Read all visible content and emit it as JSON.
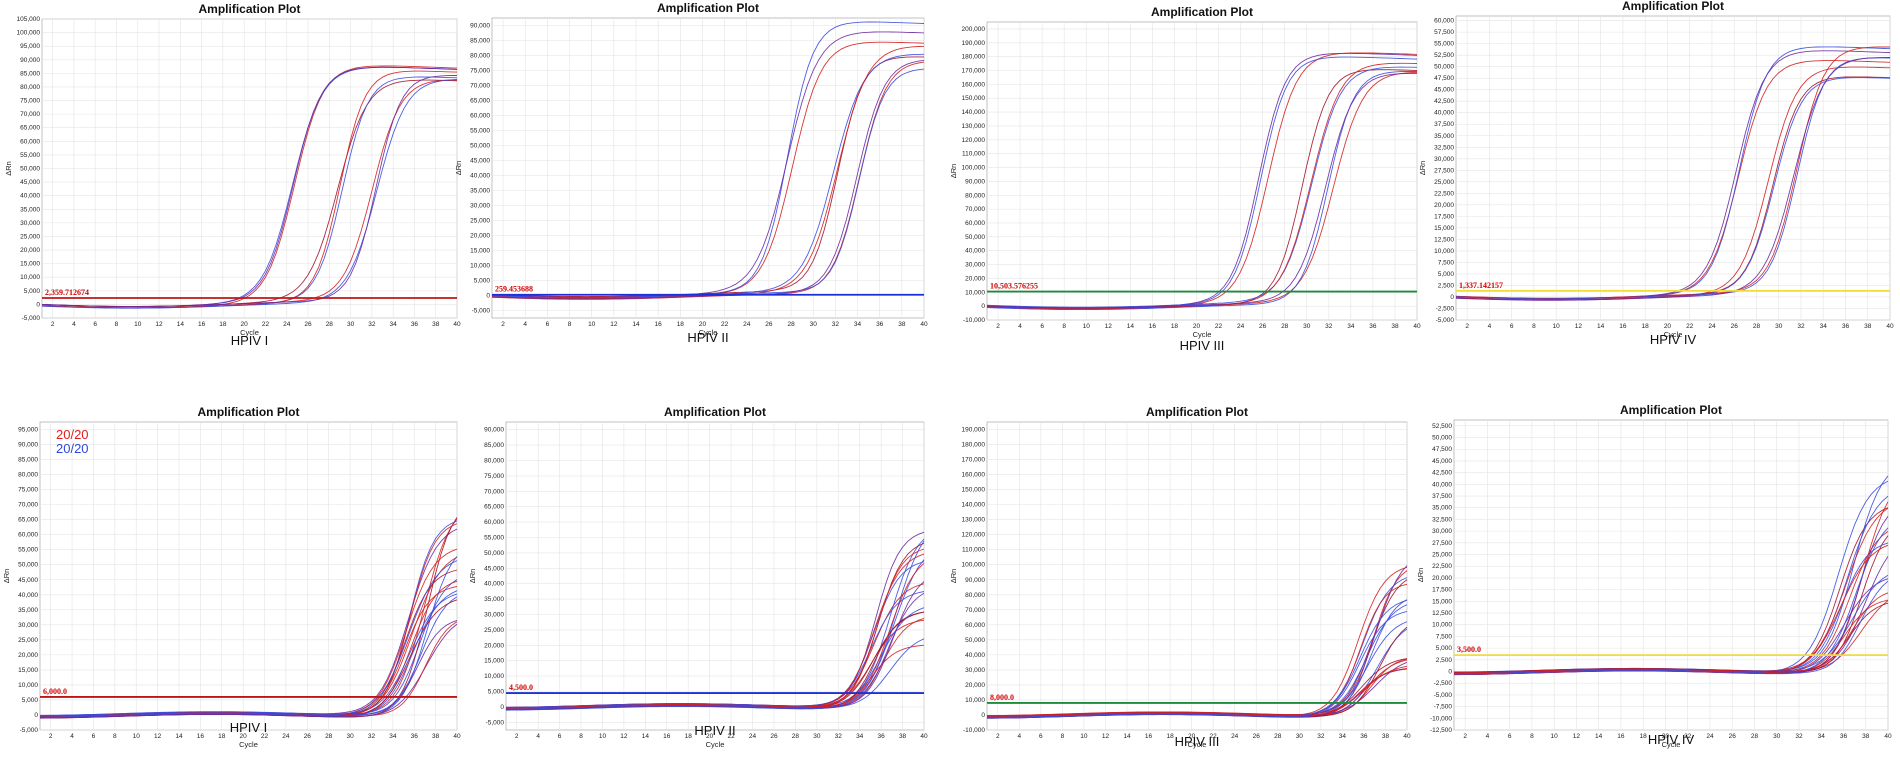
{
  "colors": {
    "red": "#d42020",
    "blue": "#3a4ee0",
    "purple": "#6a2aa0",
    "darkred": "#a4122a",
    "grid": "#e4e4e4",
    "frame": "#9a9a9a",
    "threshold_red": "#c01414",
    "threshold_blue": "#1c30d8",
    "threshold_green": "#1e8a3c",
    "threshold_yellow": "#f2dc38"
  },
  "chart_data": [
    {
      "type": "line",
      "title": "Amplification Plot",
      "caption": "HPIV I",
      "xlabel": "Cycle",
      "ylabel": "ΔRn",
      "xlim": [
        1,
        40
      ],
      "ylim": [
        -5000,
        105000
      ],
      "ystep": 5000,
      "threshold": {
        "value": 2359.71,
        "label": "2,359.712674",
        "color": "#c01414"
      },
      "grid": true,
      "curves": {
        "style": "sigmoid",
        "groups": [
          {
            "ct": 25.0,
            "plateau": 88000,
            "count": 3,
            "spread": 0.5,
            "pspread": 4000
          },
          {
            "ct": 29.0,
            "plateau": 84000,
            "count": 3,
            "spread": 0.6,
            "pspread": 3000
          },
          {
            "ct": 32.0,
            "plateau": 86000,
            "count": 3,
            "spread": 0.5,
            "pspread": 3000
          }
        ]
      }
    },
    {
      "type": "line",
      "title": "Amplification Plot",
      "caption": "HPIV II",
      "xlabel": "Cycle",
      "ylabel": "ΔRn",
      "xlim": [
        1,
        40
      ],
      "ylim": [
        -7500,
        92500
      ],
      "ystep": 5000,
      "threshold": {
        "value": 259.45,
        "label": "259.453688",
        "color": "#1c30d8"
      },
      "grid": true,
      "curves": {
        "style": "sigmoid",
        "groups": [
          {
            "ct": 28.0,
            "plateau": 88000,
            "count": 3,
            "spread": 0.5,
            "pspread": 4000
          },
          {
            "ct": 32.0,
            "plateau": 82000,
            "count": 3,
            "spread": 0.5,
            "pspread": 4000
          },
          {
            "ct": 34.5,
            "plateau": 78000,
            "count": 3,
            "spread": 0.6,
            "pspread": 4000
          }
        ]
      }
    },
    {
      "type": "line",
      "title": "Amplification Plot",
      "caption": "HPIV III",
      "xlabel": "Cycle",
      "ylabel": "ΔRn",
      "xlim": [
        1,
        40
      ],
      "ylim": [
        -10000,
        205000
      ],
      "ystep": 10000,
      "threshold": {
        "value": 10503.58,
        "label": "10,503.576255",
        "color": "#1e8a3c"
      },
      "grid": true,
      "curves": {
        "style": "sigmoid",
        "groups": [
          {
            "ct": 26.0,
            "plateau": 180000,
            "count": 3,
            "spread": 0.5,
            "pspread": 6000
          },
          {
            "ct": 30.0,
            "plateau": 175000,
            "count": 3,
            "spread": 0.5,
            "pspread": 5000
          },
          {
            "ct": 32.0,
            "plateau": 172000,
            "count": 3,
            "spread": 0.5,
            "pspread": 5000
          }
        ]
      }
    },
    {
      "type": "line",
      "title": "Amplification Plot",
      "caption": "HPIV IV",
      "xlabel": "Cycle",
      "ylabel": "ΔRn",
      "xlim": [
        1,
        40
      ],
      "ylim": [
        -5000,
        61000
      ],
      "ystep": 2500,
      "threshold": {
        "value": 1337.14,
        "label": "1,337.142157",
        "color": "#f2dc38"
      },
      "grid": true,
      "curves": {
        "style": "sigmoid",
        "groups": [
          {
            "ct": 26.5,
            "plateau": 52000,
            "count": 3,
            "spread": 0.5,
            "pspread": 2500
          },
          {
            "ct": 29.5,
            "plateau": 50000,
            "count": 3,
            "spread": 0.5,
            "pspread": 2500
          },
          {
            "ct": 31.5,
            "plateau": 52000,
            "count": 3,
            "spread": 0.5,
            "pspread": 2500
          }
        ]
      }
    },
    {
      "type": "line",
      "title": "Amplification Plot",
      "caption": "HPIV I",
      "xlabel": "Cycle",
      "ylabel": "ΔRn",
      "xlim": [
        1,
        40
      ],
      "ylim": [
        -5000,
        97500
      ],
      "ystep": 5000,
      "threshold": {
        "value": 6000,
        "label": "6,000.0",
        "color": "#c01414"
      },
      "grid": true,
      "legend": [
        {
          "text": "20/20",
          "color": "#e02020"
        },
        {
          "text": "20/20",
          "color": "#2f48d8"
        }
      ],
      "curves": {
        "style": "late",
        "count": 20,
        "ct_min": 35.0,
        "ct_max": 37.5,
        "end_min": 30000,
        "end_max": 68000
      }
    },
    {
      "type": "line",
      "title": "Amplification Plot",
      "caption": "HPIV II",
      "xlabel": "Cycle",
      "ylabel": "ΔRn",
      "xlim": [
        1,
        40
      ],
      "ylim": [
        -7500,
        92500
      ],
      "ystep": 5000,
      "threshold": {
        "value": 4500,
        "label": "4,500.0",
        "color": "#1c30d8"
      },
      "grid": true,
      "curves": {
        "style": "late",
        "count": 20,
        "ct_min": 35.0,
        "ct_max": 37.5,
        "end_min": 18000,
        "end_max": 58000
      }
    },
    {
      "type": "line",
      "title": "Amplification Plot",
      "caption": "HPIV III",
      "xlabel": "Cycle",
      "ylabel": "ΔRn",
      "xlim": [
        1,
        40
      ],
      "ylim": [
        -10000,
        195000
      ],
      "ystep": 10000,
      "threshold": {
        "value": 8000,
        "label": "8,000.0",
        "color": "#1e8a3c"
      },
      "grid": true,
      "curves": {
        "style": "late",
        "count": 20,
        "ct_min": 35.0,
        "ct_max": 37.5,
        "end_min": 25000,
        "end_max": 105000
      }
    },
    {
      "type": "line",
      "title": "Amplification Plot",
      "caption": "HPIV IV",
      "xlabel": "Cycle",
      "ylabel": "ΔRn",
      "xlim": [
        1,
        40
      ],
      "ylim": [
        -12500,
        53750
      ],
      "ystep": 2500,
      "threshold": {
        "value": 3500,
        "label": "3,500.0",
        "color": "#f2dc38"
      },
      "grid": true,
      "curves": {
        "style": "late",
        "count": 20,
        "ct_min": 35.5,
        "ct_max": 38.0,
        "end_min": 14000,
        "end_max": 43000
      }
    }
  ]
}
